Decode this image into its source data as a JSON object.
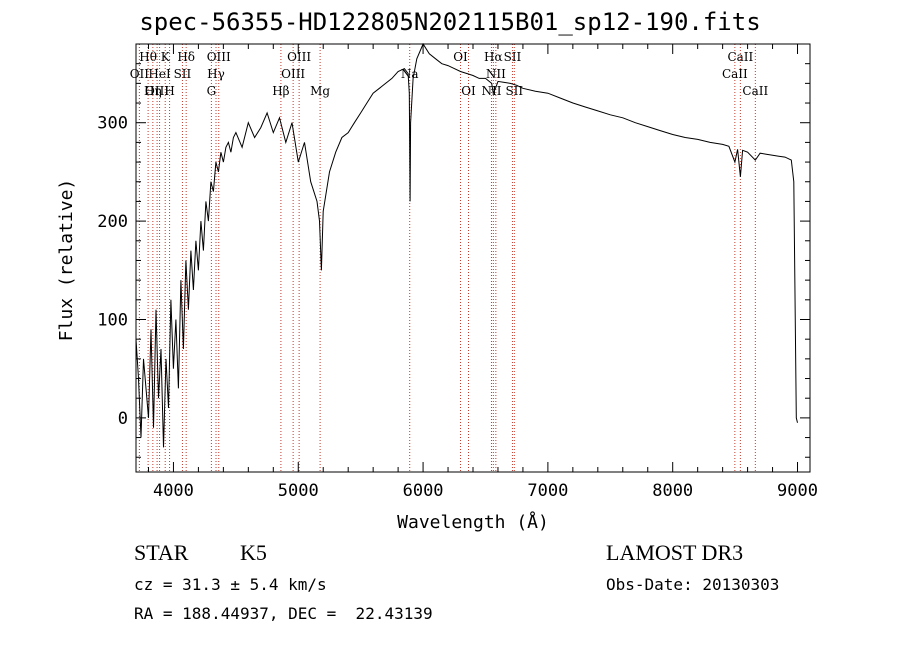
{
  "chart_data": {
    "type": "line",
    "title": "spec-56355-HD122805N202115B01_sp12-190.fits",
    "xlabel": "Wavelength (Å)",
    "ylabel": "Flux (relative)",
    "xlim": [
      3700,
      9100
    ],
    "ylim": [
      -55,
      380
    ],
    "x_ticks": [
      4000,
      5000,
      6000,
      7000,
      8000,
      9000
    ],
    "y_ticks": [
      0,
      100,
      200,
      300
    ],
    "grid": false,
    "series": [
      {
        "x": [
          3700,
          3720,
          3740,
          3760,
          3780,
          3800,
          3820,
          3840,
          3860,
          3880,
          3900,
          3920,
          3940,
          3960,
          3980,
          4000,
          4020,
          4040,
          4060,
          4080,
          4100,
          4120,
          4140,
          4160,
          4180,
          4200,
          4220,
          4240,
          4260,
          4280,
          4300,
          4320,
          4340,
          4360,
          4380,
          4400,
          4420,
          4440,
          4460,
          4480,
          4500,
          4550,
          4600,
          4650,
          4700,
          4750,
          4800,
          4850,
          4900,
          4950,
          5000,
          5050,
          5100,
          5150,
          5170,
          5185,
          5200,
          5250,
          5300,
          5350,
          5400,
          5450,
          5500,
          5550,
          5600,
          5650,
          5700,
          5750,
          5800,
          5850,
          5880,
          5890,
          5896,
          5900,
          5920,
          5950,
          6000,
          6050,
          6100,
          6150,
          6200,
          6250,
          6300,
          6350,
          6400,
          6450,
          6500,
          6550,
          6562,
          6580,
          6600,
          6650,
          6700,
          6750,
          6800,
          6900,
          7000,
          7100,
          7200,
          7300,
          7400,
          7500,
          7600,
          7700,
          7800,
          7900,
          8000,
          8100,
          8200,
          8300,
          8400,
          8450,
          8498,
          8520,
          8542,
          8560,
          8600,
          8662,
          8700,
          8750,
          8800,
          8850,
          8900,
          8950,
          8970,
          8990,
          9000
        ],
        "y": [
          80,
          40,
          -20,
          60,
          30,
          0,
          90,
          -10,
          110,
          20,
          70,
          -30,
          60,
          10,
          120,
          50,
          100,
          30,
          140,
          70,
          160,
          110,
          170,
          130,
          180,
          150,
          200,
          170,
          220,
          200,
          240,
          230,
          260,
          250,
          270,
          260,
          275,
          280,
          270,
          285,
          290,
          275,
          300,
          285,
          295,
          310,
          290,
          305,
          280,
          300,
          260,
          280,
          240,
          220,
          200,
          150,
          210,
          250,
          270,
          285,
          290,
          300,
          310,
          320,
          330,
          335,
          340,
          345,
          352,
          355,
          350,
          330,
          220,
          300,
          345,
          365,
          380,
          370,
          365,
          360,
          358,
          355,
          352,
          350,
          348,
          345,
          345,
          340,
          330,
          335,
          342,
          341,
          340,
          338,
          335,
          332,
          330,
          325,
          320,
          316,
          312,
          308,
          305,
          300,
          296,
          292,
          288,
          285,
          283,
          280,
          278,
          276,
          260,
          273,
          245,
          272,
          270,
          262,
          269,
          268,
          267,
          266,
          265,
          262,
          240,
          0,
          -5
        ]
      }
    ],
    "line_markers": [
      {
        "lines": [
          {
            "x": 3797,
            "label": "Hθ",
            "tier": 0
          },
          {
            "x": 3835,
            "label": "Hη",
            "tier": 0
          },
          {
            "x": 3889,
            "label": "He I",
            "tier": 0
          }
        ]
      },
      {
        "lines": []
      }
    ],
    "spectral_lines": [
      {
        "x": 3727,
        "label": "OII",
        "tier": 1
      },
      {
        "x": 3797,
        "label": "Hθ",
        "tier": 0
      },
      {
        "x": 3835,
        "label": "Hη",
        "tier": 2
      },
      {
        "x": 3869,
        "label": "OIII",
        "tier": 2
      },
      {
        "x": 3889,
        "label": "HeI",
        "tier": 1
      },
      {
        "x": 3934,
        "label": "K",
        "tier": 0
      },
      {
        "x": 3969,
        "label": "H",
        "tier": 2
      },
      {
        "x": 4072,
        "label": "SII",
        "tier": 1
      },
      {
        "x": 4102,
        "label": "Hδ",
        "tier": 0
      },
      {
        "x": 4304,
        "label": "G",
        "tier": 2
      },
      {
        "x": 4341,
        "label": "Hγ",
        "tier": 1
      },
      {
        "x": 4363,
        "label": "OIII",
        "tier": 0
      },
      {
        "x": 4861,
        "label": "Hβ",
        "tier": 2
      },
      {
        "x": 4959,
        "label": "OIII",
        "tier": 1
      },
      {
        "x": 5007,
        "label": "OIII",
        "tier": 0
      },
      {
        "x": 5175,
        "label": "Mg",
        "tier": 2
      },
      {
        "x": 5893,
        "label": "Na",
        "tier": 1
      },
      {
        "x": 6300,
        "label": "OI",
        "tier": 0
      },
      {
        "x": 6364,
        "label": "OI",
        "tier": 2
      },
      {
        "x": 6548,
        "label": "NII",
        "tier": 2
      },
      {
        "x": 6563,
        "label": "Hα",
        "tier": 0
      },
      {
        "x": 6583,
        "label": "NII",
        "tier": 1
      },
      {
        "x": 6716,
        "label": "SII",
        "tier": 0
      },
      {
        "x": 6731,
        "label": "SII",
        "tier": 2
      },
      {
        "x": 8498,
        "label": "CaII",
        "tier": 1
      },
      {
        "x": 8542,
        "label": "CaII",
        "tier": 0
      },
      {
        "x": 8662,
        "label": "CaII",
        "tier": 2
      }
    ]
  },
  "info": {
    "object_class": "STAR",
    "subclass": "K5",
    "survey": "LAMOST DR3",
    "redshift": "cz = 31.3 ± 5.4 km/s",
    "obs_date": "Obs-Date: 20130303",
    "coords": "RA = 188.44937, DEC =  22.43139"
  },
  "colors": {
    "line_marker": "#c0392b",
    "spectrum": "#000000",
    "axes": "#000000"
  }
}
